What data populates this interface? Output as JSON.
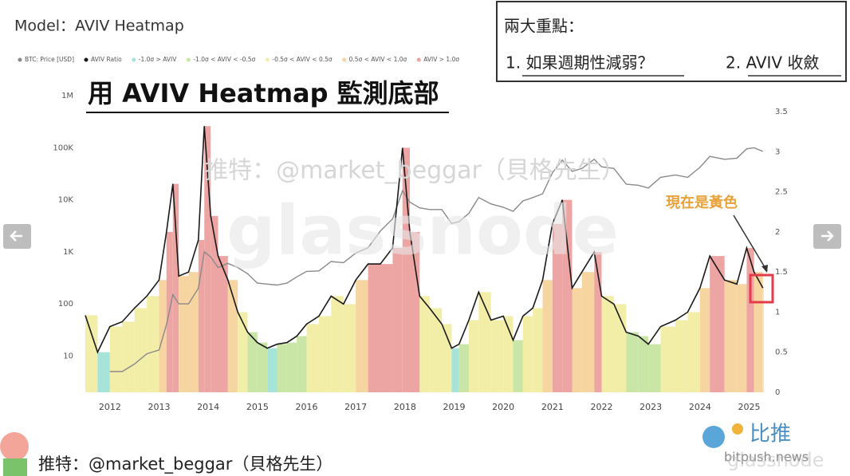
{
  "chart_data": {
    "type": "heatmap-line",
    "title": "Model：AVIV Heatmap",
    "headline": "用 AVIV Heatmap 監測底部",
    "annotation": "現在是黃色",
    "x": [
      2011.5,
      2011.75,
      2012.0,
      2012.25,
      2012.5,
      2012.75,
      2013.0,
      2013.15,
      2013.28,
      2013.4,
      2013.6,
      2013.8,
      2013.92,
      2014.05,
      2014.2,
      2014.4,
      2014.6,
      2014.8,
      2015.0,
      2015.2,
      2015.4,
      2015.6,
      2015.8,
      2016.0,
      2016.25,
      2016.5,
      2016.75,
      2017.0,
      2017.25,
      2017.5,
      2017.75,
      2017.95,
      2018.1,
      2018.3,
      2018.5,
      2018.75,
      2018.95,
      2019.1,
      2019.3,
      2019.5,
      2019.75,
      2020.0,
      2020.2,
      2020.4,
      2020.6,
      2020.8,
      2021.0,
      2021.2,
      2021.4,
      2021.6,
      2021.85,
      2022.0,
      2022.25,
      2022.5,
      2022.75,
      2022.95,
      2023.2,
      2023.5,
      2023.75,
      2024.0,
      2024.2,
      2024.5,
      2024.75,
      2024.95,
      2025.1,
      2025.28
    ],
    "xlim": [
      2011.5,
      2025.3
    ],
    "xticks": [
      2012,
      2013,
      2014,
      2015,
      2016,
      2017,
      2018,
      2019,
      2020,
      2021,
      2022,
      2023,
      2024,
      2025
    ],
    "ylim": [
      2,
      1000000
    ],
    "ylog": true,
    "yticks": [
      10,
      100,
      {
        "value": 1000,
        "label": "1K"
      },
      {
        "value": 10000,
        "label": "10K"
      },
      {
        "value": 100000,
        "label": "100K"
      },
      {
        "value": 1000000,
        "label": "1M"
      }
    ],
    "y2lim": [
      0,
      3.7
    ],
    "y2ticks": [
      0,
      0.5,
      1,
      1.5,
      2,
      2.5,
      3,
      3.5
    ],
    "series": [
      {
        "name": "BTC: Price [USD]",
        "color": "#8a8a8a",
        "axis": "y",
        "values": [
          null,
          null,
          5,
          5,
          7,
          11,
          13,
          40,
          150,
          100,
          100,
          200,
          1000,
          800,
          500,
          600,
          500,
          380,
          250,
          240,
          230,
          250,
          330,
          420,
          430,
          650,
          620,
          950,
          1200,
          2500,
          4300,
          15000,
          9000,
          7000,
          6500,
          6500,
          3500,
          3800,
          5500,
          11000,
          8300,
          7200,
          6000,
          9500,
          11000,
          13000,
          33000,
          58000,
          35000,
          40000,
          60000,
          43000,
          40000,
          20000,
          19000,
          16800,
          27000,
          30000,
          27000,
          42000,
          68000,
          60000,
          63000,
          95000,
          100000,
          85000
        ]
      },
      {
        "name": "AVIV Ratio",
        "color": "#1a1a1a",
        "axis": "y2",
        "values": [
          0.96,
          0.5,
          0.82,
          0.88,
          1.05,
          1.2,
          1.4,
          2.0,
          2.6,
          1.45,
          1.5,
          1.9,
          3.32,
          2.2,
          1.7,
          1.4,
          1.0,
          0.75,
          0.62,
          0.55,
          0.6,
          0.62,
          0.7,
          0.85,
          0.95,
          1.2,
          1.1,
          1.4,
          1.6,
          1.6,
          1.8,
          3.05,
          2.0,
          1.2,
          1.05,
          0.85,
          0.55,
          0.6,
          0.9,
          1.25,
          0.9,
          0.95,
          0.65,
          0.95,
          1.05,
          1.4,
          2.1,
          2.4,
          1.3,
          1.5,
          1.75,
          1.2,
          1.1,
          0.75,
          0.7,
          0.6,
          0.82,
          0.9,
          1.0,
          1.3,
          1.7,
          1.4,
          1.35,
          1.8,
          1.5,
          1.3
        ],
        "point_colors": [
          "#f2eea8",
          "#a6e3d9",
          "#f2eea8",
          "#f2eea8",
          "#f2eea8",
          "#f2eea8",
          "#f7d5a1",
          "#eda5a3",
          "#eda5a3",
          "#f7d5a1",
          "#f7d5a1",
          "#eda5a3",
          "#eda5a3",
          "#eda5a3",
          "#eda5a3",
          "#f7d5a1",
          "#f2eea8",
          "#c9e6a6",
          "#c9e6a6",
          "#a6e3d9",
          "#c9e6a6",
          "#c9e6a6",
          "#c9e6a6",
          "#f2eea8",
          "#f2eea8",
          "#f2eea8",
          "#f2eea8",
          "#f7d5a1",
          "#eda5a3",
          "#eda5a3",
          "#eda5a3",
          "#eda5a3",
          "#eda5a3",
          "#f2eea8",
          "#f2eea8",
          "#f2eea8",
          "#a6e3d9",
          "#c9e6a6",
          "#f2eea8",
          "#f2eea8",
          "#f2eea8",
          "#f2eea8",
          "#c9e6a6",
          "#f2eea8",
          "#f2eea8",
          "#f7d5a1",
          "#eda5a3",
          "#eda5a3",
          "#f7d5a1",
          "#f7d5a1",
          "#eda5a3",
          "#f2eea8",
          "#f2eea8",
          "#c9e6a6",
          "#c9e6a6",
          "#c9e6a6",
          "#f2eea8",
          "#f2eea8",
          "#f2eea8",
          "#f7d5a1",
          "#eda5a3",
          "#f7d5a1",
          "#f7d5a1",
          "#eda5a3",
          "#f7d5a1",
          "#f2eea8"
        ]
      }
    ],
    "zones": [
      {
        "name": "-1.0σ > AVIV",
        "color": "#a6e3d9"
      },
      {
        "name": "-1.0σ < AVIV < -0.5σ",
        "color": "#c9e6a6"
      },
      {
        "name": "-0.5σ < AVIV < 0.5σ",
        "color": "#f2eea8"
      },
      {
        "name": "0.5σ < AVIV < 1.0σ",
        "color": "#f7d5a1"
      },
      {
        "name": "AVIV > 1.0σ",
        "color": "#eda5a3"
      }
    ]
  },
  "note": {
    "heading": "兩大重點：",
    "points": [
      "1. 如果週期性減弱？",
      "2. AVIV 收斂"
    ]
  },
  "watermark": {
    "handle": "推特：@market_beggar（貝格先生）",
    "logo": "glassnode"
  },
  "footer": {
    "brand": "比推",
    "site": "bitpush.news"
  }
}
